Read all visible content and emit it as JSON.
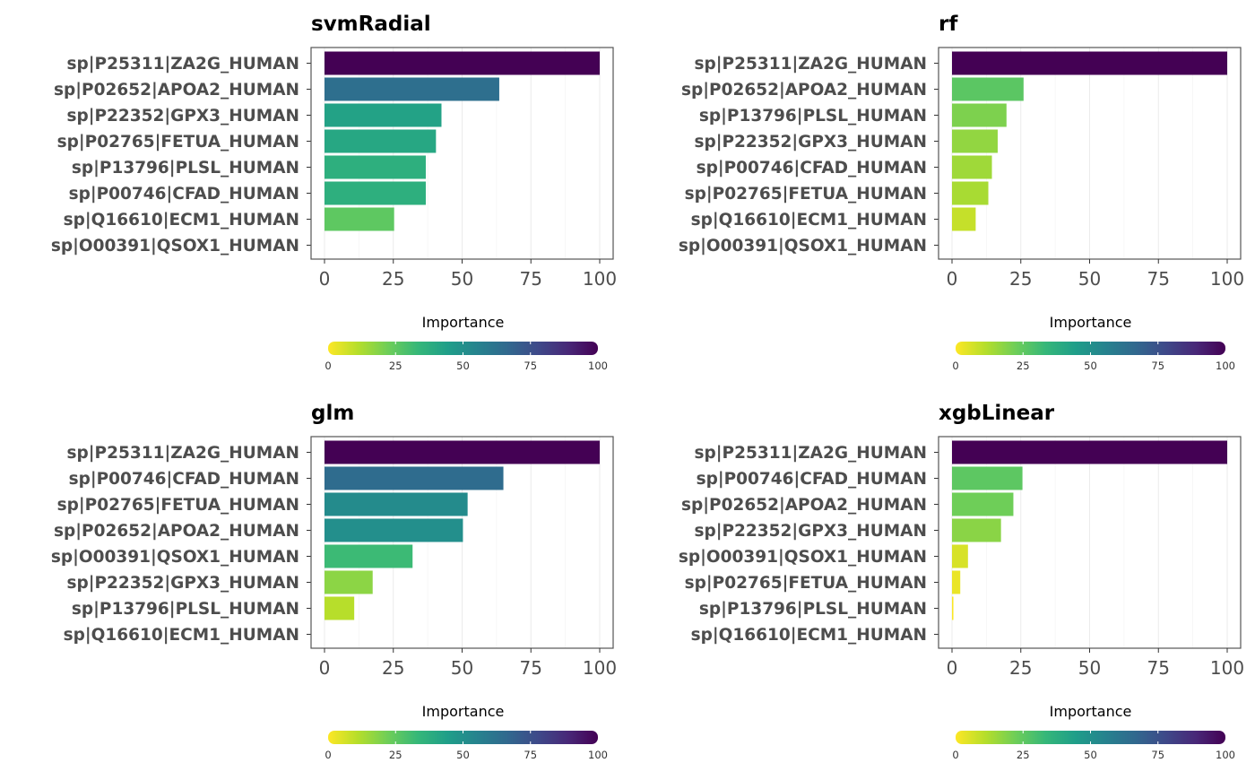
{
  "chart_data": [
    {
      "type": "bar",
      "orientation": "horizontal",
      "title": "svmRadial",
      "categories": [
        "sp|P25311|ZA2G_HUMAN",
        "sp|P02652|APOA2_HUMAN",
        "sp|P22352|GPX3_HUMAN",
        "sp|P02765|FETUA_HUMAN",
        "sp|P13796|PLSL_HUMAN",
        "sp|P00746|CFAD_HUMAN",
        "sp|Q16610|ECM1_HUMAN",
        "sp|O00391|QSOX1_HUMAN"
      ],
      "values": [
        100,
        63.5,
        42.5,
        40.5,
        36.8,
        36.8,
        25.3,
        0
      ],
      "xlim": [
        0,
        100
      ],
      "xticks": [
        "0",
        "25",
        "50",
        "75",
        "100"
      ],
      "legend": {
        "title": "Importance",
        "ticks": [
          "0",
          "25",
          "50",
          "75",
          "100"
        ],
        "placement": "bottom"
      },
      "grid": true
    },
    {
      "type": "bar",
      "orientation": "horizontal",
      "title": "rf",
      "categories": [
        "sp|P25311|ZA2G_HUMAN",
        "sp|P02652|APOA2_HUMAN",
        "sp|P13796|PLSL_HUMAN",
        "sp|P22352|GPX3_HUMAN",
        "sp|P00746|CFAD_HUMAN",
        "sp|P02765|FETUA_HUMAN",
        "sp|Q16610|ECM1_HUMAN",
        "sp|O00391|QSOX1_HUMAN"
      ],
      "values": [
        100,
        26.0,
        19.8,
        16.6,
        14.5,
        13.2,
        8.6,
        0
      ],
      "xlim": [
        0,
        100
      ],
      "xticks": [
        "0",
        "25",
        "50",
        "75",
        "100"
      ],
      "legend": {
        "title": "Importance",
        "ticks": [
          "0",
          "25",
          "50",
          "75",
          "100"
        ],
        "placement": "bottom"
      },
      "grid": true
    },
    {
      "type": "bar",
      "orientation": "horizontal",
      "title": "glm",
      "categories": [
        "sp|P25311|ZA2G_HUMAN",
        "sp|P00746|CFAD_HUMAN",
        "sp|P02765|FETUA_HUMAN",
        "sp|P02652|APOA2_HUMAN",
        "sp|O00391|QSOX1_HUMAN",
        "sp|P22352|GPX3_HUMAN",
        "sp|P13796|PLSL_HUMAN",
        "sp|Q16610|ECM1_HUMAN"
      ],
      "values": [
        100,
        65.0,
        52.0,
        50.3,
        32.0,
        17.5,
        10.8,
        0
      ],
      "xlim": [
        0,
        100
      ],
      "xticks": [
        "0",
        "25",
        "50",
        "75",
        "100"
      ],
      "legend": {
        "title": "Importance",
        "ticks": [
          "0",
          "25",
          "50",
          "75",
          "100"
        ],
        "placement": "bottom"
      },
      "grid": true
    },
    {
      "type": "bar",
      "orientation": "horizontal",
      "title": "xgbLinear",
      "categories": [
        "sp|P25311|ZA2G_HUMAN",
        "sp|P00746|CFAD_HUMAN",
        "sp|P02652|APOA2_HUMAN",
        "sp|P22352|GPX3_HUMAN",
        "sp|O00391|QSOX1_HUMAN",
        "sp|P02765|FETUA_HUMAN",
        "sp|P13796|PLSL_HUMAN",
        "sp|Q16610|ECM1_HUMAN"
      ],
      "values": [
        100,
        25.6,
        22.3,
        17.8,
        5.8,
        3.0,
        0.5,
        0
      ],
      "xlim": [
        0,
        100
      ],
      "xticks": [
        "0",
        "25",
        "50",
        "75",
        "100"
      ],
      "legend": {
        "title": "Importance",
        "ticks": [
          "0",
          "25",
          "50",
          "75",
          "100"
        ],
        "placement": "bottom"
      },
      "grid": true
    }
  ],
  "colors": {
    "scale": [
      "#fde725",
      "#b5de2b",
      "#6ece58",
      "#35b779",
      "#1f9e89",
      "#26828e",
      "#31688e",
      "#3e4989",
      "#482878",
      "#440154"
    ],
    "panel_border": "#555555",
    "grid": "#ebebeb",
    "axis_text": "#4d4d4d",
    "title_text": "#000000"
  }
}
